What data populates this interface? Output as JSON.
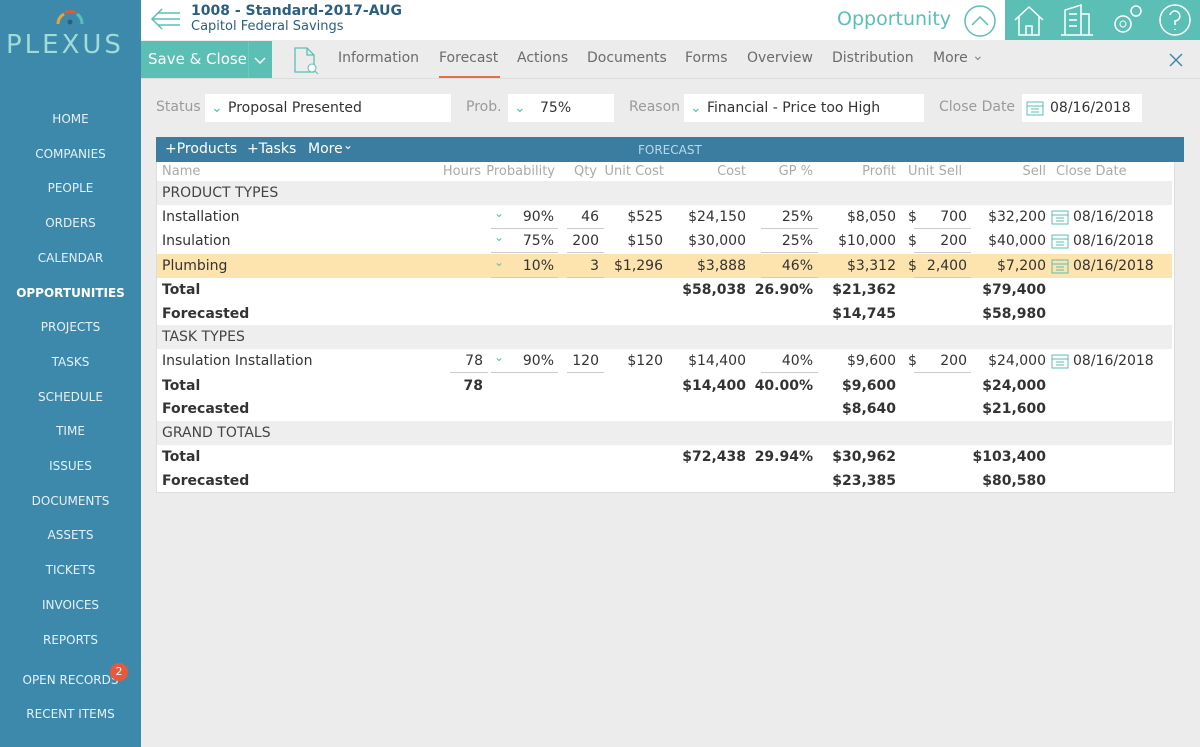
{
  "sidebar": {
    "logo": "PLEXUS",
    "nav": [
      "HOME",
      "COMPANIES",
      "PEOPLE",
      "ORDERS",
      "CALENDAR",
      "OPPORTUNITIES",
      "PROJECTS",
      "TASKS",
      "SCHEDULE",
      "TIME",
      "ISSUES",
      "DOCUMENTS",
      "ASSETS",
      "TICKETS",
      "INVOICES",
      "REPORTS"
    ],
    "open_records": "OPEN RECORDS",
    "open_records_badge": "2",
    "recent_items": "RECENT ITEMS"
  },
  "header": {
    "record_title": "1008 - Standard-2017-AUG",
    "company": "Capitol Federal Savings",
    "module": "Opportunity"
  },
  "toolbar": {
    "save": "Save & Close",
    "tabs": [
      "Information",
      "Forecast",
      "Actions",
      "Documents",
      "Forms",
      "Overview",
      "Distribution",
      "More"
    ]
  },
  "fields": {
    "status_label": "Status",
    "status": "Proposal Presented",
    "prob_label": "Prob.",
    "prob": "75%",
    "reason_label": "Reason",
    "reason": "Financial - Price too High",
    "close_date_label": "Close Date",
    "close_date": "08/16/2018"
  },
  "table": {
    "actions": [
      "+Products",
      "+Tasks",
      "More"
    ],
    "title": "FORECAST",
    "columns": [
      "Name",
      "Hours",
      "Probability",
      "Qty",
      "Unit Cost",
      "Cost",
      "GP %",
      "Profit",
      "Unit Sell",
      "Sell",
      "Close Date"
    ],
    "sections": [
      {
        "title": "PRODUCT TYPES",
        "items": [
          {
            "cells": [
              "Installation",
              null,
              "90%",
              "46",
              "$525",
              "$24,150",
              "25%",
              "$8,050",
              "$",
              "700",
              "$32,200",
              "08/16/2018"
            ]
          },
          {
            "cells": [
              "Insulation",
              null,
              "75%",
              "200",
              "$150",
              "$30,000",
              "25%",
              "$10,000",
              "$",
              "200",
              "$40,000",
              "08/16/2018"
            ]
          },
          {
            "cells": [
              "Plumbing",
              null,
              "10%",
              "3",
              "$1,296",
              "$3,888",
              "46%",
              "$3,312",
              "$",
              "2,400",
              "$7,200",
              "08/16/2018"
            ],
            "selected": true
          }
        ],
        "total": [
          "Total",
          null,
          null,
          null,
          null,
          "$58,038",
          "26.90%",
          "$21,362",
          null,
          null,
          "$79,400",
          null
        ],
        "forecasted": [
          "Forecasted",
          null,
          null,
          null,
          null,
          null,
          null,
          "$14,745",
          null,
          null,
          "$58,980",
          null
        ]
      },
      {
        "title": "TASK TYPES",
        "items": [
          {
            "cells": [
              "Insulation Installation",
              "78",
              "90%",
              "120",
              "$120",
              "$14,400",
              "40%",
              "$9,600",
              "$",
              "200",
              "$24,000",
              "08/16/2018"
            ]
          }
        ],
        "total": [
          "Total",
          "78",
          null,
          null,
          null,
          "$14,400",
          "40.00%",
          "$9,600",
          null,
          null,
          "$24,000",
          null
        ],
        "forecasted": [
          "Forecasted",
          null,
          null,
          null,
          null,
          null,
          null,
          "$8,640",
          null,
          null,
          "$21,600",
          null
        ]
      },
      {
        "title": "GRAND TOTALS",
        "items": [],
        "total": [
          "Total",
          null,
          null,
          null,
          null,
          "$72,438",
          "29.94%",
          "$30,962",
          null,
          null,
          "$103,400",
          null
        ],
        "forecasted": [
          "Forecasted",
          null,
          null,
          null,
          null,
          null,
          null,
          "$23,385",
          null,
          null,
          "$80,580",
          null
        ]
      }
    ]
  }
}
